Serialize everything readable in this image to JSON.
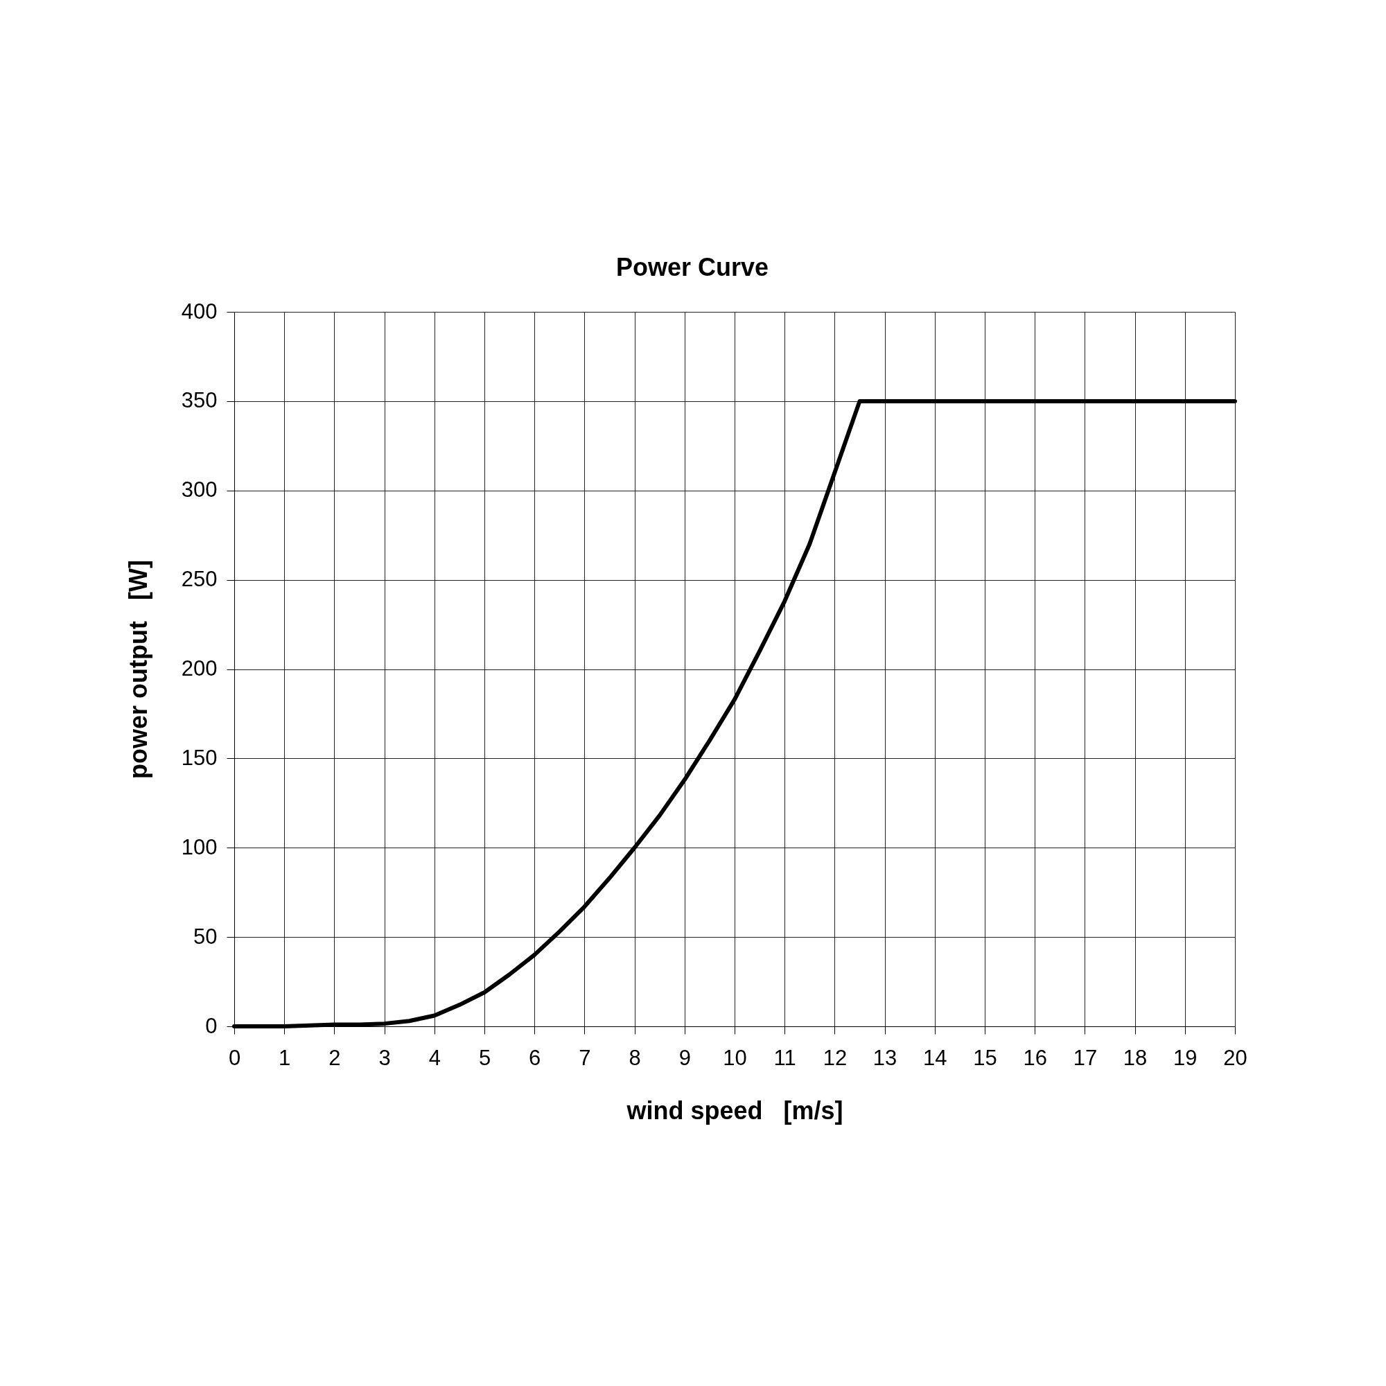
{
  "chart_data": {
    "type": "line",
    "title": "Power Curve",
    "xlabel": "wind speed   [m/s]",
    "ylabel": "power output   [W]",
    "x": [
      0,
      0.5,
      1,
      1.5,
      2,
      2.5,
      3,
      3.5,
      4,
      4.5,
      5,
      5.5,
      6,
      6.5,
      7,
      7.5,
      8,
      8.5,
      9,
      9.5,
      10,
      10.5,
      11,
      11.5,
      12,
      12.5,
      20
    ],
    "series": [
      {
        "color": "#000000",
        "values": [
          0,
          0,
          0,
          0.5,
          1,
          1,
          1.5,
          3,
          6,
          12,
          19,
          29,
          40,
          53,
          67,
          83,
          100,
          118,
          138,
          160,
          183,
          210,
          238,
          270,
          310,
          350,
          350
        ]
      }
    ],
    "xlim": [
      0,
      20
    ],
    "ylim": [
      0,
      400
    ],
    "xticks": [
      0,
      1,
      2,
      3,
      4,
      5,
      6,
      7,
      8,
      9,
      10,
      11,
      12,
      13,
      14,
      15,
      16,
      17,
      18,
      19,
      20
    ],
    "yticks": [
      0,
      50,
      100,
      150,
      200,
      250,
      300,
      350,
      400
    ],
    "grid": true,
    "line_style": "solid"
  }
}
